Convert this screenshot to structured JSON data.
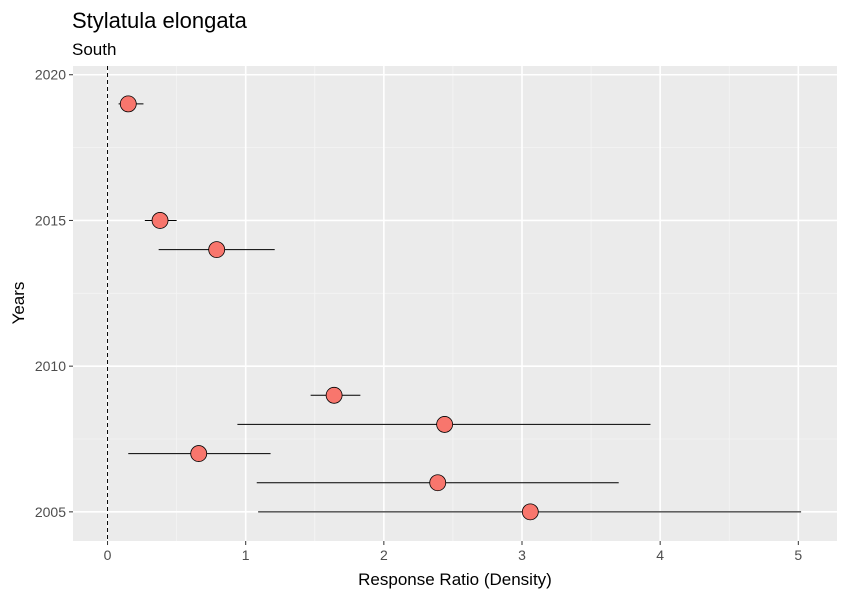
{
  "chart_data": {
    "type": "scatter",
    "title": "Stylatula elongata",
    "subtitle": "South",
    "xlabel": "Response Ratio (Density)",
    "ylabel": "Years",
    "xlim": [
      -0.25,
      5.28
    ],
    "ylim": [
      2004.0,
      2020.3
    ],
    "xticks": [
      0,
      1,
      2,
      3,
      4,
      5
    ],
    "yticks": [
      2005,
      2010,
      2015,
      2020
    ],
    "reference_line_x": 0,
    "grid": true,
    "point_color": "#f8766d",
    "panel_color": "#ebebeb",
    "series": [
      {
        "points": [
          {
            "year": 2019,
            "value": 0.15,
            "lower": 0.08,
            "upper": 0.26
          },
          {
            "year": 2015,
            "value": 0.38,
            "lower": 0.27,
            "upper": 0.5
          },
          {
            "year": 2014,
            "value": 0.79,
            "lower": 0.37,
            "upper": 1.21
          },
          {
            "year": 2009,
            "value": 1.64,
            "lower": 1.47,
            "upper": 1.83
          },
          {
            "year": 2008,
            "value": 2.44,
            "lower": 0.94,
            "upper": 3.93
          },
          {
            "year": 2007,
            "value": 0.66,
            "lower": 0.15,
            "upper": 1.18
          },
          {
            "year": 2006,
            "value": 2.39,
            "lower": 1.08,
            "upper": 3.7
          },
          {
            "year": 2005,
            "value": 3.06,
            "lower": 1.09,
            "upper": 5.02
          }
        ]
      }
    ]
  }
}
